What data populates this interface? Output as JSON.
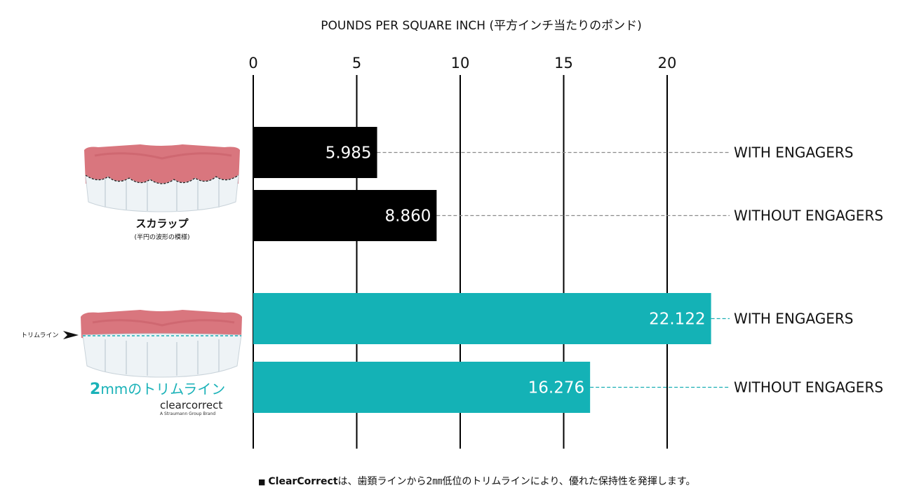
{
  "colors": {
    "scallop_bar": "#000000",
    "trim_bar": "#14b2b6",
    "scallop_leader": "#8a8a8a",
    "trim_leader": "#1aaeb4",
    "gum": "#d9767e",
    "tooth": "#f2f6f8"
  },
  "chart_data": {
    "type": "bar",
    "orientation": "horizontal",
    "title": "",
    "axis_title": "POUNDS PER SQUARE INCH (平方インチ当たりのポンド)",
    "xlim": [
      0,
      23
    ],
    "ticks": [
      0,
      5,
      10,
      15,
      20
    ],
    "tick_labels": [
      "0",
      "5",
      "10",
      "15",
      "20"
    ],
    "groups": [
      {
        "name": "スカラップ",
        "subtitle": "(半円の波形の模様)",
        "bars": [
          {
            "label": "WITH ENGAGERS",
            "value": 5.985,
            "display": "5.985"
          },
          {
            "label": "WITHOUT ENGAGERS",
            "value": 8.86,
            "display": "8.860"
          }
        ]
      },
      {
        "name": "2mmのトリムライン",
        "bars": [
          {
            "label": "WITH ENGAGERS",
            "value": 22.122,
            "display": "22.122"
          },
          {
            "label": "WITHOUT ENGAGERS",
            "value": 16.276,
            "display": "16.276"
          }
        ]
      }
    ]
  },
  "left_panel": {
    "trim_marker": "トリムライン",
    "trim_title_num": "2",
    "trim_title_rest": "mmのトリムライン",
    "brand": "clearcorrect",
    "brand_sub": "A Straumann Group Brand"
  },
  "footnote": {
    "bullet": "■",
    "brand": "ClearCorrect",
    "text": "は、歯頚ラインから2㎜低位のトリムラインにより、優れた保持性を発揮します。"
  }
}
